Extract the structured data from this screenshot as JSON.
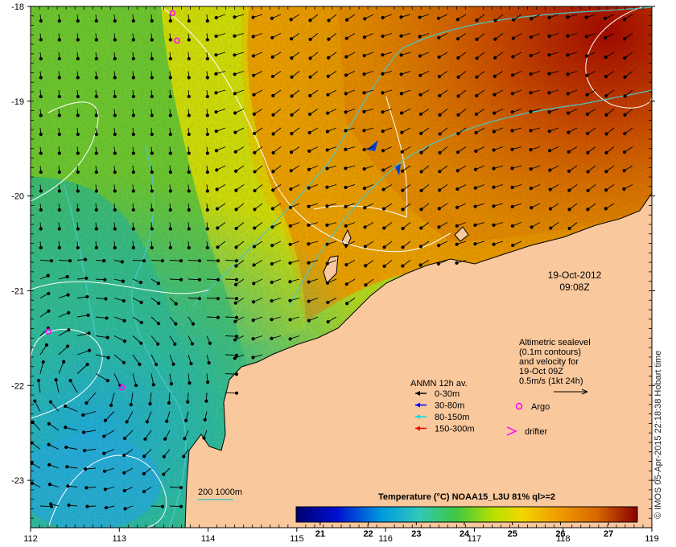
{
  "map": {
    "lon_range": [
      112,
      119
    ],
    "lat_range": [
      -23.5,
      -18
    ],
    "x_ticks": [
      "112",
      "113",
      "114",
      "115",
      "116",
      "117",
      "118",
      "119"
    ],
    "y_ticks": [
      "-18",
      "-19",
      "-20",
      "-21",
      "-22",
      "-23"
    ],
    "land_color": "#f9c89d",
    "contour_color": "#ffffff",
    "isobath_color": "#49c8c8"
  },
  "timestamp": {
    "date": "19-Oct-2012",
    "time": "09:08Z"
  },
  "altimetry_note": {
    "line1": "Altimetric sealevel",
    "line2": "(0.1m contours)",
    "line3": "and velocity for",
    "line4": "19-Oct 09Z",
    "line5": "0.5m/s (1kt 24h)"
  },
  "anmn_legend": {
    "title": "ANMN 12h av.",
    "items": [
      {
        "label": "0-30m",
        "color": "#000000"
      },
      {
        "label": "30-80m",
        "color": "#0000ff"
      },
      {
        "label": "80-150m",
        "color": "#00e0e0"
      },
      {
        "label": "150-300m",
        "color": "#ff0000"
      }
    ]
  },
  "markers_legend": {
    "argo_label": "Argo",
    "drifter_label": "drifter",
    "argo_color": "#ff00ff",
    "drifter_color": "#ff00ff"
  },
  "isobath_legend": {
    "label": "200  1000m"
  },
  "colorbar": {
    "title": "Temperature (°C) NOAA15_L3U 81% ql>=2",
    "min": 20.5,
    "max": 27.6,
    "ticks": [
      "21",
      "22",
      "23",
      "24",
      "25",
      "26",
      "27"
    ]
  },
  "argo_floats": [
    {
      "lon": 113.6,
      "lat": -18.07
    },
    {
      "lon": 113.65,
      "lat": -18.36
    },
    {
      "lon": 112.2,
      "lat": -21.43
    },
    {
      "lon": 113.03,
      "lat": -22.02
    }
  ],
  "credit": "© IMOS 05-Apr-2015 22:18:38 Hobart time"
}
